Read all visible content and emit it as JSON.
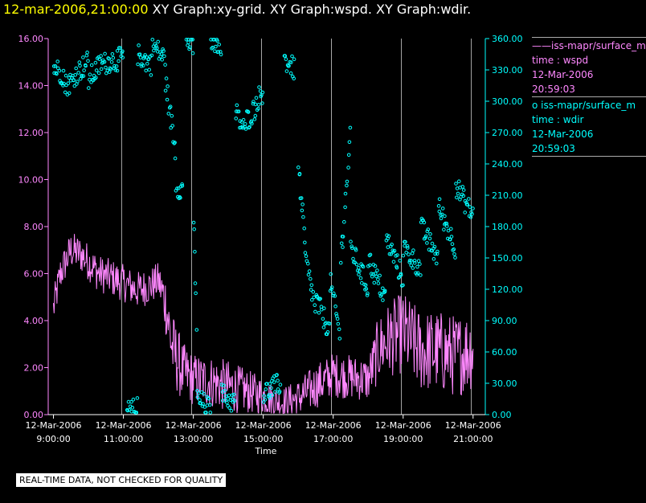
{
  "header": {
    "date": "12-mar-2006,21:00:00",
    "graphs": "XY Graph:xy-grid.  XY Graph:wspd.  XY Graph:wdir."
  },
  "colors": {
    "wspd": "#ff88ff",
    "wdir": "#00ffff",
    "grid": "#aaaaaa",
    "axis": "#ffffff"
  },
  "legend": [
    {
      "symbol": "——",
      "name": "iss-mapr/surface_m",
      "var": "time : wspd",
      "date": "12-Mar-2006",
      "time": "20:59:03"
    },
    {
      "symbol": "o",
      "name": "iss-mapr/surface_m",
      "var": "time : wdir",
      "date": "12-Mar-2006",
      "time": "20:59:03"
    }
  ],
  "disclaimer": "REAL-TIME DATA, NOT CHECKED FOR QUALITY",
  "chart_data": {
    "type": "line+scatter",
    "xlabel": "Time",
    "xlim": [
      8.85,
      21.35
    ],
    "x_ticks": [
      {
        "h": 9,
        "date": "12-Mar-2006",
        "time": "9:00:00"
      },
      {
        "h": 11,
        "date": "12-Mar-2006",
        "time": "11:00:00"
      },
      {
        "h": 13,
        "date": "12-Mar-2006",
        "time": "13:00:00"
      },
      {
        "h": 15,
        "date": "12-Mar-2006",
        "time": "15:00:00"
      },
      {
        "h": 17,
        "date": "12-Mar-2006",
        "time": "17:00:00"
      },
      {
        "h": 19,
        "date": "12-Mar-2006",
        "time": "19:00:00"
      },
      {
        "h": 21,
        "date": "12-Mar-2006",
        "time": "21:00:00"
      }
    ],
    "grid_x_hours": [
      10.95,
      12.95,
      14.95,
      16.95,
      18.95,
      20.95
    ],
    "y_left": {
      "label": "wspd",
      "lim": [
        0,
        16
      ],
      "ticks": [
        "0.00",
        "2.00",
        "4.00",
        "6.00",
        "8.00",
        "10.00",
        "12.00",
        "14.00",
        "16.00"
      ]
    },
    "y_right": {
      "label": "wdir",
      "lim": [
        0,
        360
      ],
      "ticks": [
        "0.00",
        "30.00",
        "60.00",
        "90.00",
        "120.00",
        "150.00",
        "180.00",
        "210.00",
        "240.00",
        "270.00",
        "300.00",
        "330.00",
        "360.00"
      ]
    },
    "series": [
      {
        "name": "wspd",
        "axis": "left",
        "style": "line",
        "keypoints": [
          [
            9.0,
            4.5
          ],
          [
            9.2,
            6.0
          ],
          [
            9.5,
            7.0
          ],
          [
            9.8,
            6.8
          ],
          [
            10.0,
            6.5
          ],
          [
            10.3,
            6.0
          ],
          [
            10.7,
            5.8
          ],
          [
            11.0,
            5.6
          ],
          [
            11.4,
            5.3
          ],
          [
            11.8,
            5.5
          ],
          [
            12.0,
            5.7
          ],
          [
            12.2,
            4.8
          ],
          [
            12.4,
            2.8
          ],
          [
            12.7,
            1.8
          ],
          [
            13.0,
            1.5
          ],
          [
            13.5,
            1.4
          ],
          [
            14.0,
            1.2
          ],
          [
            14.5,
            1.0
          ],
          [
            15.0,
            0.8
          ],
          [
            15.5,
            0.5
          ],
          [
            16.0,
            0.7
          ],
          [
            16.5,
            1.2
          ],
          [
            17.0,
            1.7
          ],
          [
            17.5,
            1.6
          ],
          [
            18.0,
            1.5
          ],
          [
            18.3,
            2.8
          ],
          [
            18.6,
            3.2
          ],
          [
            19.0,
            3.5
          ],
          [
            19.5,
            2.7
          ],
          [
            20.0,
            2.7
          ],
          [
            20.5,
            2.5
          ],
          [
            21.0,
            2.8
          ]
        ],
        "noise": [
          0.5,
          0.5,
          0.5,
          0.5,
          0.5,
          0.5,
          0.5,
          0.5,
          0.5,
          0.5,
          0.5,
          0.8,
          1.0,
          0.8,
          0.7,
          0.7,
          0.7,
          0.6,
          0.5,
          0.4,
          0.5,
          0.6,
          0.6,
          0.6,
          0.6,
          0.9,
          1.0,
          1.1,
          1.1,
          1.1,
          1.1,
          1.1
        ]
      },
      {
        "name": "wdir",
        "axis": "right",
        "style": "circles",
        "segments": [
          [
            9.0,
            9.3,
            333,
            325
          ],
          [
            9.3,
            9.6,
            315,
            320
          ],
          [
            9.6,
            10.0,
            325,
            338
          ],
          [
            10.0,
            10.4,
            320,
            338
          ],
          [
            10.4,
            10.7,
            335,
            340
          ],
          [
            10.7,
            11.0,
            338,
            342
          ],
          [
            11.1,
            11.4,
            2,
            6
          ],
          [
            11.4,
            11.8,
            345,
            335
          ],
          [
            11.8,
            12.2,
            355,
            340
          ],
          [
            12.2,
            12.5,
            320,
            250
          ],
          [
            12.5,
            12.7,
            220,
            215
          ],
          [
            12.8,
            13.0,
            360,
            350
          ],
          [
            13.0,
            13.1,
            200,
            80
          ],
          [
            13.1,
            13.5,
            15,
            5
          ],
          [
            13.5,
            13.8,
            360,
            355
          ],
          [
            13.8,
            14.2,
            20,
            10
          ],
          [
            14.2,
            14.5,
            290,
            270
          ],
          [
            14.5,
            14.8,
            280,
            295
          ],
          [
            14.8,
            15.0,
            300,
            310
          ],
          [
            15.0,
            15.5,
            20,
            30
          ],
          [
            15.6,
            15.9,
            340,
            330
          ],
          [
            16.0,
            16.2,
            240,
            160
          ],
          [
            16.2,
            16.5,
            150,
            100
          ],
          [
            16.5,
            16.9,
            110,
            80
          ],
          [
            16.9,
            17.2,
            130,
            75
          ],
          [
            17.2,
            17.5,
            140,
            270
          ],
          [
            17.5,
            18.0,
            160,
            120
          ],
          [
            18.0,
            18.5,
            150,
            110
          ],
          [
            18.5,
            19.0,
            170,
            130
          ],
          [
            19.0,
            19.5,
            160,
            140
          ],
          [
            19.5,
            20.0,
            180,
            150
          ],
          [
            20.0,
            20.5,
            200,
            160
          ],
          [
            20.5,
            21.0,
            220,
            190
          ]
        ],
        "spread": 18
      }
    ]
  }
}
